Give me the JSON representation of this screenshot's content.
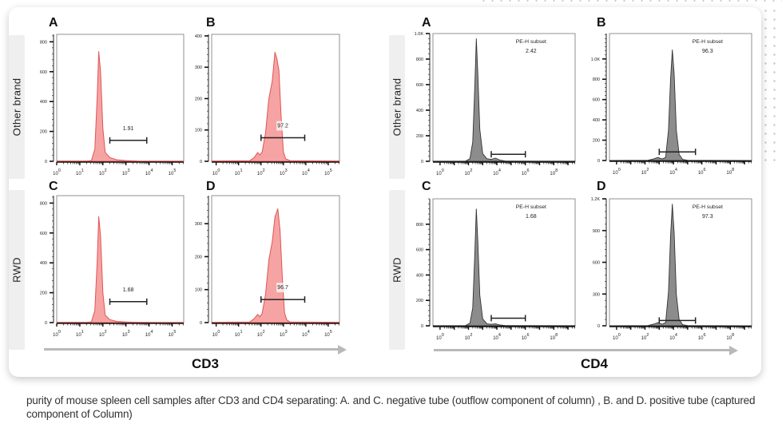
{
  "caption": "purity of mouse spleen cell samples after CD3 and CD4 separating: A. and C. negative tube (outflow component of column) , B. and D. positive tube (captured component of Column)",
  "row_labels": [
    "Other brand",
    "RWD"
  ],
  "axis_titles": {
    "left": "CD3",
    "right": "CD4"
  },
  "colors": {
    "cd3_fill": "#f6a3a3",
    "cd3_line": "#e05555",
    "cd4_fill": "#8c8c8c",
    "cd4_line": "#333333",
    "arrow": "#b9b9b9"
  },
  "chart_data": [
    {
      "id": "cd3-A",
      "type": "area",
      "marker": "CD3",
      "row": "Other brand",
      "letter": "A",
      "title": "",
      "xlabel": "",
      "ylabel": "",
      "xscale": "log",
      "xlim": [
        0,
        5.5
      ],
      "ylim": [
        0,
        850
      ],
      "yticks": [
        0,
        200,
        400,
        600,
        800
      ],
      "ytick_labels": [
        "0",
        "200",
        "400",
        "600",
        "800"
      ],
      "xticks": [
        0,
        1,
        2,
        3,
        4,
        5
      ],
      "xtick_labels": [
        "10^0",
        "10^1",
        "10^2",
        "10^3",
        "10^4",
        "10^5"
      ],
      "series": [
        {
          "name": "histogram",
          "x": [
            0,
            1.3,
            1.5,
            1.65,
            1.75,
            1.82,
            1.9,
            2.0,
            2.1,
            2.3,
            2.6,
            3.0,
            3.5,
            4.5,
            5.5
          ],
          "y": [
            2,
            2,
            5,
            80,
            420,
            735,
            600,
            220,
            60,
            25,
            10,
            5,
            2,
            1,
            1
          ]
        }
      ],
      "gate": {
        "x": [
          2.3,
          3.9
        ],
        "y": 140
      },
      "annotations": [
        {
          "text": "1.91"
        }
      ]
    },
    {
      "id": "cd3-B",
      "type": "area",
      "marker": "CD3",
      "row": "Other brand",
      "letter": "B",
      "title": "",
      "xlabel": "",
      "ylabel": "",
      "xscale": "log",
      "xlim": [
        -0.2,
        5.5
      ],
      "ylim": [
        0,
        405
      ],
      "yticks": [
        0,
        100,
        200,
        300,
        400
      ],
      "ytick_labels": [
        "0",
        "100",
        "200",
        "300",
        "400"
      ],
      "xticks": [
        0,
        1,
        2,
        3,
        4,
        5
      ],
      "xtick_labels": [
        "10^0",
        "10^1",
        "10^2",
        "10^3",
        "10^4",
        "10^5"
      ],
      "series": [
        {
          "name": "histogram",
          "x": [
            -0.2,
            1.5,
            1.7,
            1.85,
            1.95,
            2.05,
            2.2,
            2.35,
            2.5,
            2.62,
            2.7,
            2.8,
            2.9,
            3.0,
            3.1,
            3.3,
            5.5
          ],
          "y": [
            1,
            2,
            12,
            28,
            20,
            30,
            90,
            200,
            255,
            348,
            330,
            290,
            140,
            30,
            8,
            2,
            1
          ]
        }
      ],
      "gate": {
        "x": [
          2.0,
          3.95
        ],
        "y": 75
      },
      "annotations": [
        {
          "text": "97.2"
        }
      ]
    },
    {
      "id": "cd3-C",
      "type": "area",
      "marker": "CD3",
      "row": "RWD",
      "letter": "C",
      "title": "",
      "xlabel": "",
      "ylabel": "",
      "xscale": "log",
      "xlim": [
        0,
        5.5
      ],
      "ylim": [
        0,
        850
      ],
      "yticks": [
        0,
        200,
        400,
        600,
        800
      ],
      "ytick_labels": [
        "0",
        "200",
        "400",
        "600",
        "800"
      ],
      "xticks": [
        0,
        1,
        2,
        3,
        4,
        5
      ],
      "xtick_labels": [
        "10^0",
        "10^1",
        "10^2",
        "10^3",
        "10^4",
        "10^5"
      ],
      "series": [
        {
          "name": "histogram",
          "x": [
            0,
            1.3,
            1.5,
            1.65,
            1.75,
            1.82,
            1.9,
            2.0,
            2.1,
            2.3,
            2.6,
            3.0,
            3.5,
            4.5,
            5.5
          ],
          "y": [
            2,
            2,
            5,
            80,
            400,
            710,
            580,
            200,
            50,
            20,
            8,
            4,
            2,
            1,
            1
          ]
        }
      ],
      "gate": {
        "x": [
          2.3,
          3.9
        ],
        "y": 140
      },
      "annotations": [
        {
          "text": "1.68"
        }
      ]
    },
    {
      "id": "cd3-D",
      "type": "area",
      "marker": "CD3",
      "row": "RWD",
      "letter": "D",
      "title": "",
      "xlabel": "",
      "ylabel": "",
      "xscale": "log",
      "xlim": [
        -0.2,
        5.5
      ],
      "ylim": [
        0,
        385
      ],
      "yticks": [
        0,
        100,
        200,
        300
      ],
      "ytick_labels": [
        "0",
        "100",
        "200",
        "300"
      ],
      "xticks": [
        0,
        1,
        2,
        3,
        4,
        5
      ],
      "xtick_labels": [
        "10^0",
        "10^1",
        "10^2",
        "10^3",
        "10^4",
        "10^5"
      ],
      "series": [
        {
          "name": "histogram",
          "x": [
            -0.2,
            1.5,
            1.7,
            1.85,
            1.95,
            2.05,
            2.2,
            2.35,
            2.5,
            2.62,
            2.75,
            2.85,
            2.95,
            3.05,
            3.15,
            3.3,
            5.5
          ],
          "y": [
            1,
            2,
            12,
            25,
            18,
            28,
            85,
            190,
            245,
            320,
            345,
            280,
            140,
            30,
            8,
            2,
            1
          ]
        }
      ],
      "gate": {
        "x": [
          2.0,
          3.95
        ],
        "y": 70
      },
      "annotations": [
        {
          "text": "96.7"
        }
      ]
    },
    {
      "id": "cd4-A",
      "type": "area",
      "marker": "CD4",
      "row": "Other brand",
      "letter": "A",
      "title": "",
      "xlabel": "",
      "ylabel": "",
      "xscale": "log",
      "xlim": [
        -0.5,
        9.5
      ],
      "ylim": [
        0,
        1000
      ],
      "yticks": [
        0,
        200,
        400,
        600,
        800,
        1000
      ],
      "ytick_labels": [
        "0",
        "200",
        "400",
        "600",
        "800",
        "1.0K"
      ],
      "xticks": [
        0,
        2,
        4,
        6,
        8
      ],
      "xtick_labels": [
        "10^0",
        "10^2",
        "10^4",
        "10^6",
        "10^8"
      ],
      "series": [
        {
          "name": "histogram",
          "x": [
            -0.5,
            1.8,
            2.1,
            2.3,
            2.45,
            2.55,
            2.65,
            2.8,
            3.0,
            3.3,
            3.6,
            3.9,
            4.2,
            4.6,
            9.5
          ],
          "y": [
            1,
            2,
            20,
            150,
            600,
            960,
            700,
            250,
            60,
            20,
            15,
            25,
            10,
            2,
            1
          ]
        }
      ],
      "gate": {
        "x": [
          3.6,
          6.0
        ],
        "y": 55
      },
      "annotations": [
        {
          "text": "PE-H subset"
        },
        {
          "text": "2.42"
        }
      ]
    },
    {
      "id": "cd4-B",
      "type": "area",
      "marker": "CD4",
      "row": "Other brand",
      "letter": "B",
      "title": "",
      "xlabel": "",
      "ylabel": "",
      "xscale": "log",
      "xlim": [
        -0.5,
        9.5
      ],
      "ylim": [
        0,
        1250
      ],
      "yticks": [
        0,
        200,
        400,
        600,
        800,
        1000
      ],
      "ytick_labels": [
        "0",
        "200",
        "400",
        "600",
        "800",
        "1.0K"
      ],
      "xticks": [
        0,
        2,
        4,
        6,
        8
      ],
      "xtick_labels": [
        "10^0",
        "10^2",
        "10^4",
        "10^6",
        "10^8"
      ],
      "series": [
        {
          "name": "histogram",
          "x": [
            -0.5,
            2.2,
            2.6,
            2.9,
            3.2,
            3.45,
            3.65,
            3.8,
            3.92,
            4.05,
            4.2,
            4.4,
            4.65,
            5.0,
            9.5
          ],
          "y": [
            1,
            2,
            15,
            30,
            15,
            30,
            300,
            800,
            1090,
            850,
            300,
            60,
            10,
            2,
            1
          ]
        }
      ],
      "gate": {
        "x": [
          3.0,
          5.55
        ],
        "y": 85
      },
      "annotations": [
        {
          "text": "PE-H subset"
        },
        {
          "text": "96.3"
        }
      ]
    },
    {
      "id": "cd4-C",
      "type": "area",
      "marker": "CD4",
      "row": "RWD",
      "letter": "C",
      "title": "",
      "xlabel": "",
      "ylabel": "",
      "xscale": "log",
      "xlim": [
        -0.5,
        9.5
      ],
      "ylim": [
        0,
        1000
      ],
      "yticks": [
        0,
        200,
        400,
        600,
        800
      ],
      "ytick_labels": [
        "0",
        "200",
        "400",
        "600",
        "800"
      ],
      "xticks": [
        0,
        2,
        4,
        6,
        8
      ],
      "xtick_labels": [
        "10^0",
        "10^2",
        "10^4",
        "10^6",
        "10^8"
      ],
      "series": [
        {
          "name": "histogram",
          "x": [
            -0.5,
            1.8,
            2.1,
            2.3,
            2.45,
            2.55,
            2.65,
            2.8,
            3.0,
            3.3,
            3.6,
            3.9,
            4.2,
            4.6,
            9.5
          ],
          "y": [
            1,
            2,
            20,
            140,
            580,
            920,
            680,
            240,
            55,
            15,
            12,
            15,
            6,
            2,
            1
          ]
        }
      ],
      "gate": {
        "x": [
          3.6,
          6.0
        ],
        "y": 60
      },
      "annotations": [
        {
          "text": "PE-H subset"
        },
        {
          "text": "1.68"
        }
      ]
    },
    {
      "id": "cd4-D",
      "type": "area",
      "marker": "CD4",
      "row": "RWD",
      "letter": "D",
      "title": "",
      "xlabel": "",
      "ylabel": "",
      "xscale": "log",
      "xlim": [
        -0.5,
        9.5
      ],
      "ylim": [
        0,
        1200
      ],
      "yticks": [
        0,
        300,
        600,
        900,
        1200
      ],
      "ytick_labels": [
        "0",
        "300",
        "600",
        "900",
        "1.2K"
      ],
      "xticks": [
        0,
        2,
        4,
        6,
        8
      ],
      "xtick_labels": [
        "10^0",
        "10^2",
        "10^4",
        "10^6",
        "10^8"
      ],
      "series": [
        {
          "name": "histogram",
          "x": [
            -0.5,
            2.2,
            2.6,
            2.9,
            3.2,
            3.45,
            3.65,
            3.8,
            3.92,
            4.05,
            4.2,
            4.4,
            4.65,
            5.0,
            9.5
          ],
          "y": [
            1,
            2,
            15,
            30,
            15,
            30,
            320,
            850,
            1150,
            880,
            300,
            60,
            10,
            2,
            1
          ]
        }
      ],
      "gate": {
        "x": [
          3.0,
          5.55
        ],
        "y": 50
      },
      "annotations": [
        {
          "text": "PE-H subset"
        },
        {
          "text": "97.3"
        }
      ]
    }
  ]
}
